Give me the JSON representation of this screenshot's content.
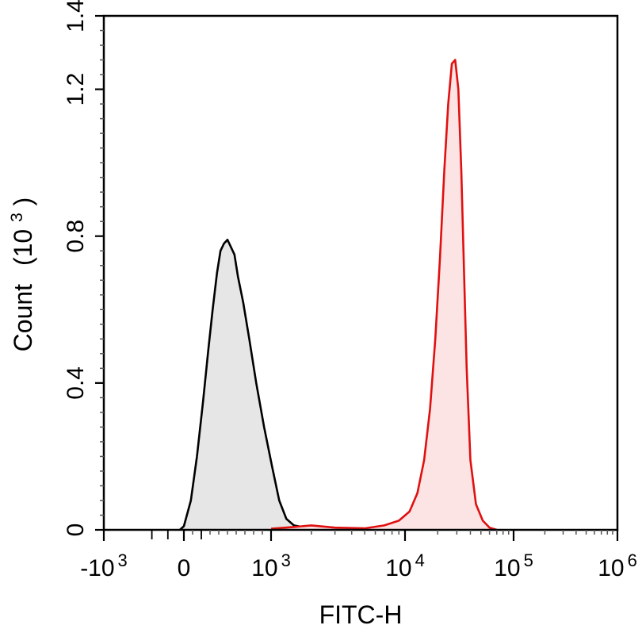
{
  "chart_data": {
    "type": "area",
    "title": "",
    "xlabel": "FITC-H",
    "ylabel": "Count",
    "ylabel_unit_base": "(10",
    "ylabel_unit_exp": "3",
    "ylabel_unit_close": ")",
    "x_scale": "biexponential",
    "ylim": [
      0,
      1.4
    ],
    "y_ticks": [
      {
        "value": 0,
        "label": "0"
      },
      {
        "value": 0.4,
        "label": "0.4"
      },
      {
        "value": 0.8,
        "label": "0.8"
      },
      {
        "value": 1.2,
        "label": "1.2"
      },
      {
        "value": 1.4,
        "label": "1.4"
      }
    ],
    "x_ticks": [
      {
        "value": -1000,
        "base": "-10",
        "exp": "3"
      },
      {
        "value": 0,
        "base": "0",
        "exp": ""
      },
      {
        "value": 1000,
        "base": "10",
        "exp": "3"
      },
      {
        "value": 10000,
        "base": "10",
        "exp": "4"
      },
      {
        "value": 100000,
        "base": "10",
        "exp": "5"
      },
      {
        "value": 1000000,
        "base": "10",
        "exp": "6"
      }
    ],
    "series": [
      {
        "color": "#000000",
        "fill": "#e6e6e6",
        "x": [
          -50,
          0,
          80,
          150,
          220,
          280,
          330,
          380,
          420,
          460,
          500,
          540,
          580,
          620,
          680,
          750,
          830,
          920,
          1020,
          1150,
          1300,
          1480,
          1700,
          2000,
          2500,
          3000,
          4000,
          5000
        ],
        "y": [
          0,
          0.01,
          0.08,
          0.2,
          0.35,
          0.49,
          0.6,
          0.7,
          0.76,
          0.78,
          0.79,
          0.77,
          0.75,
          0.69,
          0.62,
          0.52,
          0.4,
          0.28,
          0.17,
          0.08,
          0.03,
          0.012,
          0.008,
          0.006,
          0.004,
          0.003,
          0.002,
          0
        ]
      },
      {
        "color": "#e01010",
        "fill": "#fce4e4",
        "x": [
          1000,
          1500,
          2000,
          3000,
          5000,
          7000,
          9000,
          11000,
          13000,
          15000,
          17000,
          19000,
          21000,
          23000,
          25000,
          27000,
          29000,
          31000,
          33000,
          35000,
          37000,
          40000,
          45000,
          52000,
          60000,
          70000
        ],
        "y": [
          0.003,
          0.008,
          0.012,
          0.006,
          0.004,
          0.012,
          0.025,
          0.05,
          0.1,
          0.19,
          0.33,
          0.52,
          0.74,
          0.98,
          1.16,
          1.27,
          1.28,
          1.2,
          0.98,
          0.7,
          0.44,
          0.19,
          0.07,
          0.025,
          0.006,
          0
        ]
      }
    ]
  }
}
